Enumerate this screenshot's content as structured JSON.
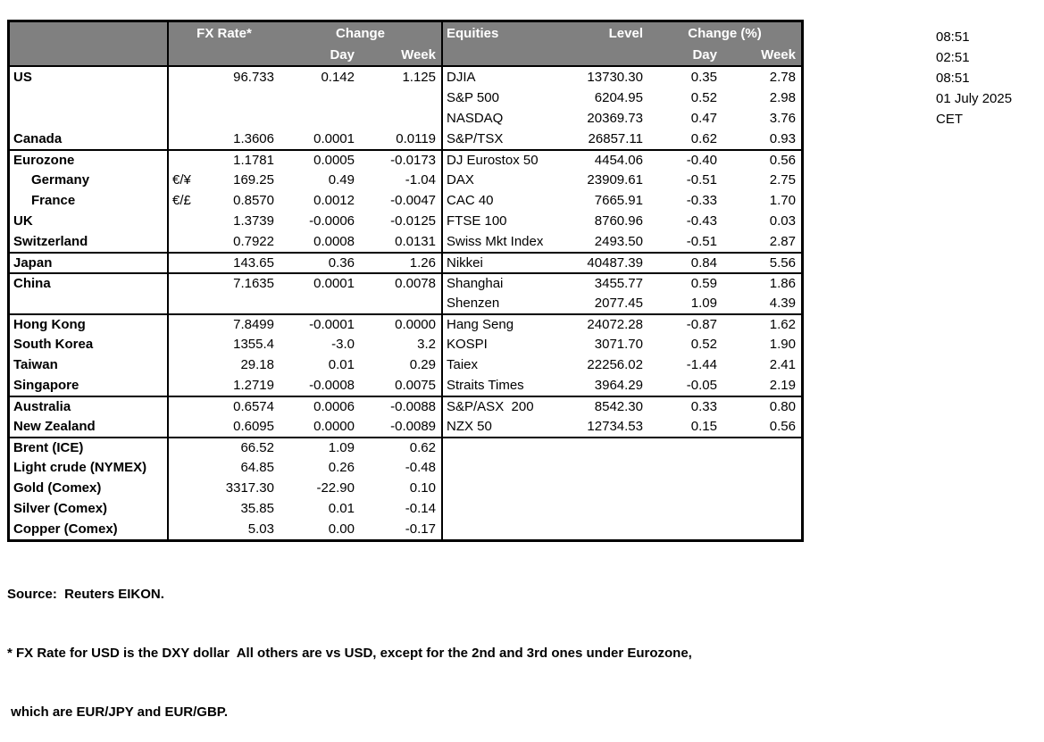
{
  "meta": {
    "timestamps": [
      "08:51",
      "02:51",
      "08:51",
      "01 July 2025",
      "CET"
    ]
  },
  "colors": {
    "header_bg": "#808080",
    "header_text": "#ffffff",
    "border": "#000000",
    "text": "#000000"
  },
  "table": {
    "fx_header": {
      "rate": "FX Rate*",
      "change": "Change",
      "day": "Day",
      "week": "Week"
    },
    "eq_header": {
      "title": "Equities",
      "level": "Level",
      "change": "Change (%)",
      "day": "Day",
      "week": "Week"
    },
    "rows": [
      {
        "section": false,
        "indent": false,
        "label": "US",
        "pair": "",
        "rate": "96.733",
        "day": "0.142",
        "week": "1.125",
        "eq_label": "DJIA",
        "eq_level": "13730.30",
        "eq_day": "0.35",
        "eq_week": "2.78"
      },
      {
        "section": false,
        "indent": false,
        "label": "",
        "pair": "",
        "rate": "",
        "day": "",
        "week": "",
        "eq_label": "S&P 500",
        "eq_level": "6204.95",
        "eq_day": "0.52",
        "eq_week": "2.98"
      },
      {
        "section": false,
        "indent": false,
        "label": "",
        "pair": "",
        "rate": "",
        "day": "",
        "week": "",
        "eq_label": "NASDAQ",
        "eq_level": "20369.73",
        "eq_day": "0.47",
        "eq_week": "3.76"
      },
      {
        "section": false,
        "indent": false,
        "label": "Canada",
        "pair": "",
        "rate": "1.3606",
        "day": "0.0001",
        "week": "0.0119",
        "eq_label": "S&P/TSX",
        "eq_level": "26857.11",
        "eq_day": "0.62",
        "eq_week": "0.93"
      },
      {
        "section": true,
        "indent": false,
        "label": "Eurozone",
        "pair": "",
        "rate": "1.1781",
        "day": "0.0005",
        "week": "-0.0173",
        "eq_label": "DJ Eurostox 50",
        "eq_level": "4454.06",
        "eq_day": "-0.40",
        "eq_week": "0.56"
      },
      {
        "section": false,
        "indent": true,
        "label": "Germany",
        "pair": "€/¥",
        "rate": "169.25",
        "day": "0.49",
        "week": "-1.04",
        "eq_label": "DAX",
        "eq_level": "23909.61",
        "eq_day": "-0.51",
        "eq_week": "2.75"
      },
      {
        "section": false,
        "indent": true,
        "label": "France",
        "pair": "€/£",
        "rate": "0.8570",
        "day": "0.0012",
        "week": "-0.0047",
        "eq_label": "CAC 40",
        "eq_level": "7665.91",
        "eq_day": "-0.33",
        "eq_week": "1.70"
      },
      {
        "section": false,
        "indent": false,
        "label": "UK",
        "pair": "",
        "rate": "1.3739",
        "day": "-0.0006",
        "week": "-0.0125",
        "eq_label": "FTSE 100",
        "eq_level": "8760.96",
        "eq_day": "-0.43",
        "eq_week": "0.03"
      },
      {
        "section": false,
        "indent": false,
        "label": "Switzerland",
        "pair": "",
        "rate": "0.7922",
        "day": "0.0008",
        "week": "0.0131",
        "eq_label": "Swiss Mkt Index",
        "eq_level": "2493.50",
        "eq_day": "-0.51",
        "eq_week": "2.87"
      },
      {
        "section": true,
        "indent": false,
        "label": "Japan",
        "pair": "",
        "rate": "143.65",
        "day": "0.36",
        "week": "1.26",
        "eq_label": "Nikkei",
        "eq_level": "40487.39",
        "eq_day": "0.84",
        "eq_week": "5.56"
      },
      {
        "section": true,
        "indent": false,
        "label": "China",
        "pair": "",
        "rate": "7.1635",
        "day": "0.0001",
        "week": "0.0078",
        "eq_label": "Shanghai",
        "eq_level": "3455.77",
        "eq_day": "0.59",
        "eq_week": "1.86"
      },
      {
        "section": false,
        "indent": false,
        "label": "",
        "pair": "",
        "rate": "",
        "day": "",
        "week": "",
        "eq_label": "Shenzen",
        "eq_level": "2077.45",
        "eq_day": "1.09",
        "eq_week": "4.39"
      },
      {
        "section": true,
        "indent": false,
        "label": "Hong Kong",
        "pair": "",
        "rate": "7.8499",
        "day": "-0.0001",
        "week": "0.0000",
        "eq_label": "Hang Seng",
        "eq_level": "24072.28",
        "eq_day": "-0.87",
        "eq_week": "1.62"
      },
      {
        "section": false,
        "indent": false,
        "label": "South Korea",
        "pair": "",
        "rate": "1355.4",
        "day": "-3.0",
        "week": "3.2",
        "eq_label": "KOSPI",
        "eq_level": "3071.70",
        "eq_day": "0.52",
        "eq_week": "1.90"
      },
      {
        "section": false,
        "indent": false,
        "label": "Taiwan",
        "pair": "",
        "rate": "29.18",
        "day": "0.01",
        "week": "0.29",
        "eq_label": "Taiex",
        "eq_level": "22256.02",
        "eq_day": "-1.44",
        "eq_week": "2.41"
      },
      {
        "section": false,
        "indent": false,
        "label": "Singapore",
        "pair": "",
        "rate": "1.2719",
        "day": "-0.0008",
        "week": "0.0075",
        "eq_label": "Straits Times",
        "eq_level": "3964.29",
        "eq_day": "-0.05",
        "eq_week": "2.19"
      },
      {
        "section": true,
        "indent": false,
        "label": "Australia",
        "pair": "",
        "rate": "0.6574",
        "day": "0.0006",
        "week": "-0.0088",
        "eq_label": "S&P/ASX  200",
        "eq_level": "8542.30",
        "eq_day": "0.33",
        "eq_week": "0.80"
      },
      {
        "section": false,
        "indent": false,
        "label": "New Zealand",
        "pair": "",
        "rate": "0.6095",
        "day": "0.0000",
        "week": "-0.0089",
        "eq_label": "NZX 50",
        "eq_level": "12734.53",
        "eq_day": "0.15",
        "eq_week": "0.56"
      },
      {
        "section": true,
        "indent": false,
        "label": "Brent (ICE)",
        "pair": "",
        "rate": "66.52",
        "day": "1.09",
        "week": "0.62",
        "eq_label": "",
        "eq_level": "",
        "eq_day": "",
        "eq_week": ""
      },
      {
        "section": false,
        "indent": false,
        "label": "Light crude (NYMEX)",
        "pair": "",
        "rate": "64.85",
        "day": "0.26",
        "week": "-0.48",
        "eq_label": "",
        "eq_level": "",
        "eq_day": "",
        "eq_week": ""
      },
      {
        "section": false,
        "indent": false,
        "label": "Gold (Comex)",
        "pair": "",
        "rate": "3317.30",
        "day": "-22.90",
        "week": "0.10",
        "eq_label": "",
        "eq_level": "",
        "eq_day": "",
        "eq_week": ""
      },
      {
        "section": false,
        "indent": false,
        "label": "Silver (Comex)",
        "pair": "",
        "rate": "35.85",
        "day": "0.01",
        "week": "-0.14",
        "eq_label": "",
        "eq_level": "",
        "eq_day": "",
        "eq_week": ""
      },
      {
        "section": false,
        "indent": false,
        "label": "Copper (Comex)",
        "pair": "",
        "rate": "5.03",
        "day": "0.00",
        "week": "-0.17",
        "eq_label": "",
        "eq_level": "",
        "eq_day": "",
        "eq_week": ""
      }
    ]
  },
  "footer": {
    "source": "Source:  Reuters EIKON.",
    "note1": "* FX Rate for USD is the DXY dollar  All others are vs USD, except for the 2nd and 3rd ones under Eurozone,",
    "note2": " which are EUR/JPY and EUR/GBP."
  }
}
